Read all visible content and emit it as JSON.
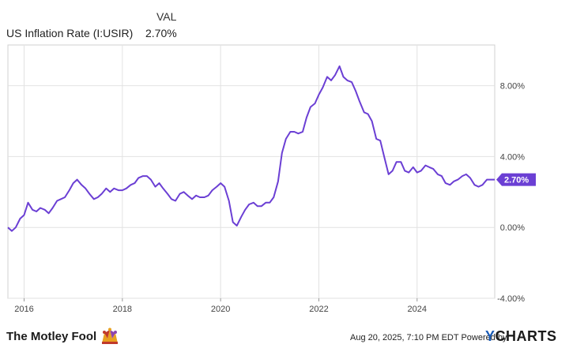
{
  "legend": {
    "header": "VAL",
    "series_name": "US Inflation Rate (I:USIR)",
    "series_value": "2.70%"
  },
  "footer": {
    "brand": "The Motley Fool",
    "credit": "Aug 20, 2025, 7:10 PM EDT  Powered by",
    "ycharts_y": "Y",
    "ycharts_rest": "CHARTS"
  },
  "colors": {
    "line": "#6b3fd4",
    "grid": "#e2e2e2",
    "badge": "#6b3fd4"
  },
  "chart_data": {
    "type": "line",
    "title": "",
    "xlabel": "",
    "ylabel": "",
    "xlim": [
      2015.67,
      2025.58
    ],
    "ylim": [
      -4.0,
      10.3
    ],
    "x_ticks": [
      2016,
      2018,
      2020,
      2022,
      2024
    ],
    "x_tick_labels": [
      "2016",
      "2018",
      "2020",
      "2022",
      "2024"
    ],
    "y_ticks": [
      -4,
      0,
      4,
      8
    ],
    "y_tick_labels": [
      "-4.00%",
      "0.00%",
      "4.00%",
      "8.00%"
    ],
    "last_value_label": "2.70%",
    "grid": true,
    "series": [
      {
        "name": "US Inflation Rate (I:USIR)",
        "points": [
          [
            2015.67,
            0.0
          ],
          [
            2015.75,
            -0.2
          ],
          [
            2015.83,
            0.0
          ],
          [
            2015.92,
            0.5
          ],
          [
            2016.0,
            0.7
          ],
          [
            2016.08,
            1.4
          ],
          [
            2016.17,
            1.0
          ],
          [
            2016.25,
            0.9
          ],
          [
            2016.33,
            1.1
          ],
          [
            2016.42,
            1.0
          ],
          [
            2016.5,
            0.8
          ],
          [
            2016.58,
            1.1
          ],
          [
            2016.67,
            1.5
          ],
          [
            2016.75,
            1.6
          ],
          [
            2016.83,
            1.7
          ],
          [
            2016.92,
            2.1
          ],
          [
            2017.0,
            2.5
          ],
          [
            2017.08,
            2.7
          ],
          [
            2017.17,
            2.4
          ],
          [
            2017.25,
            2.2
          ],
          [
            2017.33,
            1.9
          ],
          [
            2017.42,
            1.6
          ],
          [
            2017.5,
            1.7
          ],
          [
            2017.58,
            1.9
          ],
          [
            2017.67,
            2.2
          ],
          [
            2017.75,
            2.0
          ],
          [
            2017.83,
            2.2
          ],
          [
            2017.92,
            2.1
          ],
          [
            2018.0,
            2.1
          ],
          [
            2018.08,
            2.2
          ],
          [
            2018.17,
            2.4
          ],
          [
            2018.25,
            2.5
          ],
          [
            2018.33,
            2.8
          ],
          [
            2018.42,
            2.9
          ],
          [
            2018.5,
            2.9
          ],
          [
            2018.58,
            2.7
          ],
          [
            2018.67,
            2.3
          ],
          [
            2018.75,
            2.5
          ],
          [
            2018.83,
            2.2
          ],
          [
            2018.92,
            1.9
          ],
          [
            2019.0,
            1.6
          ],
          [
            2019.08,
            1.5
          ],
          [
            2019.17,
            1.9
          ],
          [
            2019.25,
            2.0
          ],
          [
            2019.33,
            1.8
          ],
          [
            2019.42,
            1.6
          ],
          [
            2019.5,
            1.8
          ],
          [
            2019.58,
            1.7
          ],
          [
            2019.67,
            1.7
          ],
          [
            2019.75,
            1.8
          ],
          [
            2019.83,
            2.1
          ],
          [
            2019.92,
            2.3
          ],
          [
            2020.0,
            2.5
          ],
          [
            2020.08,
            2.3
          ],
          [
            2020.17,
            1.5
          ],
          [
            2020.25,
            0.3
          ],
          [
            2020.33,
            0.1
          ],
          [
            2020.42,
            0.6
          ],
          [
            2020.5,
            1.0
          ],
          [
            2020.58,
            1.3
          ],
          [
            2020.67,
            1.4
          ],
          [
            2020.75,
            1.2
          ],
          [
            2020.83,
            1.2
          ],
          [
            2020.92,
            1.4
          ],
          [
            2021.0,
            1.4
          ],
          [
            2021.08,
            1.7
          ],
          [
            2021.17,
            2.6
          ],
          [
            2021.25,
            4.2
          ],
          [
            2021.33,
            5.0
          ],
          [
            2021.42,
            5.4
          ],
          [
            2021.5,
            5.4
          ],
          [
            2021.58,
            5.3
          ],
          [
            2021.67,
            5.4
          ],
          [
            2021.75,
            6.2
          ],
          [
            2021.83,
            6.8
          ],
          [
            2021.92,
            7.0
          ],
          [
            2022.0,
            7.5
          ],
          [
            2022.08,
            7.9
          ],
          [
            2022.17,
            8.5
          ],
          [
            2022.25,
            8.3
          ],
          [
            2022.33,
            8.6
          ],
          [
            2022.42,
            9.1
          ],
          [
            2022.5,
            8.5
          ],
          [
            2022.58,
            8.3
          ],
          [
            2022.67,
            8.2
          ],
          [
            2022.75,
            7.7
          ],
          [
            2022.83,
            7.1
          ],
          [
            2022.92,
            6.5
          ],
          [
            2023.0,
            6.4
          ],
          [
            2023.08,
            6.0
          ],
          [
            2023.17,
            5.0
          ],
          [
            2023.25,
            4.9
          ],
          [
            2023.33,
            4.0
          ],
          [
            2023.42,
            3.0
          ],
          [
            2023.5,
            3.2
          ],
          [
            2023.58,
            3.7
          ],
          [
            2023.67,
            3.7
          ],
          [
            2023.75,
            3.2
          ],
          [
            2023.83,
            3.1
          ],
          [
            2023.92,
            3.4
          ],
          [
            2024.0,
            3.1
          ],
          [
            2024.08,
            3.2
          ],
          [
            2024.17,
            3.5
          ],
          [
            2024.25,
            3.4
          ],
          [
            2024.33,
            3.3
          ],
          [
            2024.42,
            3.0
          ],
          [
            2024.5,
            2.9
          ],
          [
            2024.58,
            2.5
          ],
          [
            2024.67,
            2.4
          ],
          [
            2024.75,
            2.6
          ],
          [
            2024.83,
            2.7
          ],
          [
            2024.92,
            2.9
          ],
          [
            2025.0,
            3.0
          ],
          [
            2025.08,
            2.8
          ],
          [
            2025.17,
            2.4
          ],
          [
            2025.25,
            2.3
          ],
          [
            2025.33,
            2.4
          ],
          [
            2025.42,
            2.7
          ],
          [
            2025.5,
            2.7
          ],
          [
            2025.58,
            2.7
          ]
        ]
      }
    ]
  }
}
